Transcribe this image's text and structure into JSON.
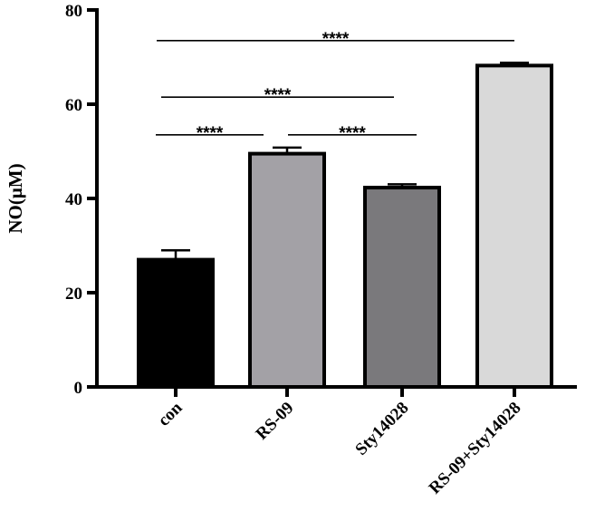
{
  "chart_data": {
    "type": "bar",
    "title": "",
    "xlabel": "",
    "ylabel": "NO(μM)",
    "ylim": [
      0,
      80
    ],
    "yticks": [
      0,
      20,
      40,
      60,
      80
    ],
    "categories": [
      "con",
      "RS-09",
      "Sty14028",
      "RS-09+Sty14028"
    ],
    "values": [
      27,
      49.5,
      42.3,
      68.2
    ],
    "errors": [
      2,
      1.3,
      0.7,
      0.6
    ],
    "bar_colors": [
      "#000000",
      "#a3a1a6",
      "#7a797c",
      "#d9d9d9"
    ],
    "bar_edge_color": "#000000",
    "grid": false,
    "significance": [
      {
        "from": 0,
        "to": 1,
        "label": "****",
        "y": 53.5
      },
      {
        "from": 1,
        "to": 2,
        "label": "****",
        "y": 53.5
      },
      {
        "from": 0,
        "to": 2,
        "label": "****",
        "y": 61.5
      },
      {
        "from": 0,
        "to": 3,
        "label": "****",
        "y": 73.5
      }
    ]
  }
}
